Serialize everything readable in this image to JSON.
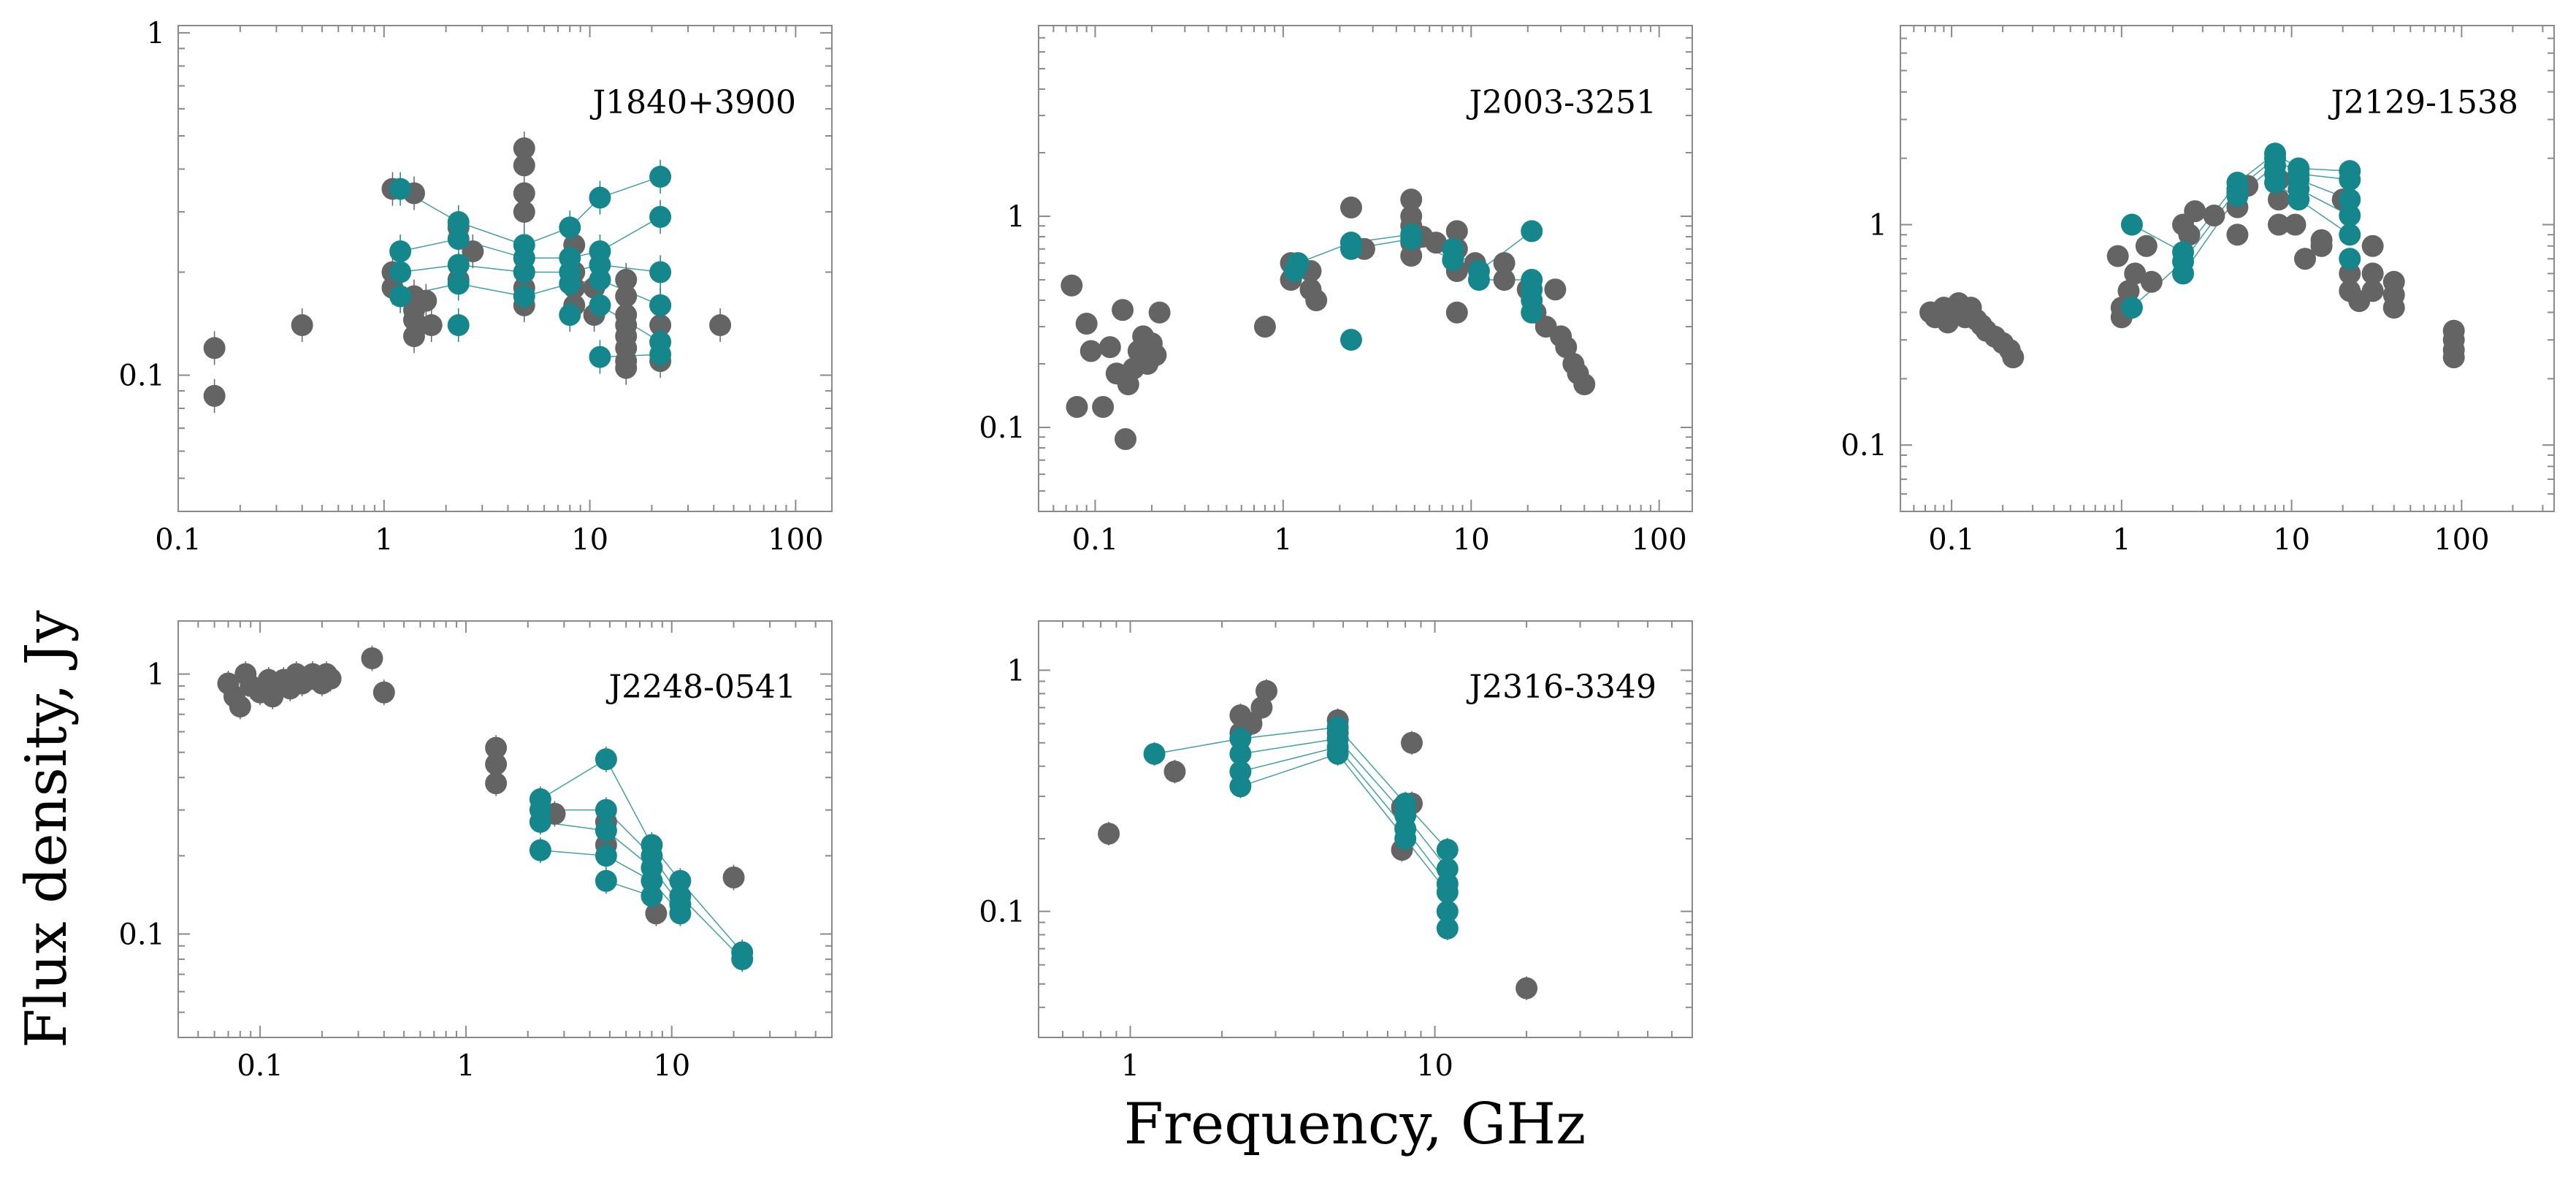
{
  "colors": {
    "gray": "#646464",
    "teal": "#15868c",
    "frame": "#8a8a8a"
  },
  "labels": {
    "x_title": "Frequency, GHz",
    "y_title": "Flux density, Jy"
  },
  "chart_data": [
    {
      "type": "scatter",
      "name": "J1840+3900",
      "xscale": "log",
      "yscale": "log",
      "xlim": [
        0.1,
        150
      ],
      "ylim": [
        0.04,
        1.05
      ],
      "xticks": [
        0.1,
        1,
        10,
        100
      ],
      "xtick_labels": [
        "0.1",
        "1",
        "10",
        "100"
      ],
      "yticks": [
        0.1,
        1
      ],
      "ytick_labels": [
        "0.1",
        "1"
      ],
      "gray": [
        [
          0.15,
          0.12
        ],
        [
          0.15,
          0.087
        ],
        [
          0.4,
          0.14
        ],
        [
          1.1,
          0.35
        ],
        [
          1.1,
          0.2
        ],
        [
          1.1,
          0.18
        ],
        [
          1.4,
          0.34
        ],
        [
          1.4,
          0.17
        ],
        [
          1.4,
          0.155
        ],
        [
          1.4,
          0.145
        ],
        [
          1.4,
          0.13
        ],
        [
          1.6,
          0.165
        ],
        [
          1.7,
          0.14
        ],
        [
          2.3,
          0.27
        ],
        [
          2.3,
          0.19
        ],
        [
          2.7,
          0.23
        ],
        [
          4.8,
          0.46
        ],
        [
          4.8,
          0.41
        ],
        [
          4.8,
          0.34
        ],
        [
          4.8,
          0.3
        ],
        [
          4.8,
          0.22
        ],
        [
          4.8,
          0.2
        ],
        [
          4.8,
          0.18
        ],
        [
          4.8,
          0.16
        ],
        [
          8.4,
          0.24
        ],
        [
          8.4,
          0.2
        ],
        [
          8.4,
          0.18
        ],
        [
          8.4,
          0.16
        ],
        [
          10.5,
          0.18
        ],
        [
          10.5,
          0.15
        ],
        [
          15,
          0.19
        ],
        [
          15,
          0.17
        ],
        [
          15,
          0.15
        ],
        [
          15,
          0.14
        ],
        [
          15,
          0.13
        ],
        [
          15,
          0.12
        ],
        [
          15,
          0.11
        ],
        [
          15,
          0.105
        ],
        [
          22,
          0.16
        ],
        [
          22,
          0.14
        ],
        [
          22,
          0.11
        ],
        [
          43,
          0.14
        ]
      ],
      "teal": [
        [
          1.2,
          0.35
        ],
        [
          1.2,
          0.23
        ],
        [
          1.2,
          0.2
        ],
        [
          1.2,
          0.17
        ],
        [
          2.3,
          0.28
        ],
        [
          2.3,
          0.25
        ],
        [
          2.3,
          0.21
        ],
        [
          2.3,
          0.185
        ],
        [
          2.3,
          0.14
        ],
        [
          4.8,
          0.24
        ],
        [
          4.8,
          0.22
        ],
        [
          4.8,
          0.2
        ],
        [
          4.8,
          0.17
        ],
        [
          8.0,
          0.27
        ],
        [
          8.0,
          0.22
        ],
        [
          8.0,
          0.2
        ],
        [
          8.0,
          0.185
        ],
        [
          8.0,
          0.15
        ],
        [
          11.2,
          0.33
        ],
        [
          11.2,
          0.23
        ],
        [
          11.2,
          0.21
        ],
        [
          11.2,
          0.19
        ],
        [
          11.2,
          0.16
        ],
        [
          11.2,
          0.113
        ],
        [
          22,
          0.38
        ],
        [
          22,
          0.29
        ],
        [
          22,
          0.2
        ],
        [
          22,
          0.16
        ],
        [
          22,
          0.125
        ],
        [
          22,
          0.115
        ]
      ]
    },
    {
      "type": "scatter",
      "name": "J2003-3251",
      "xscale": "log",
      "yscale": "log",
      "xlim": [
        0.05,
        150
      ],
      "ylim": [
        0.04,
        8
      ],
      "xticks": [
        0.1,
        1,
        10,
        100
      ],
      "xtick_labels": [
        "0.1",
        "1",
        "10",
        "100"
      ],
      "yticks": [
        0.1,
        1
      ],
      "ytick_labels": [
        "0.1",
        "1"
      ],
      "gray": [
        [
          0.075,
          0.47
        ],
        [
          0.08,
          0.125
        ],
        [
          0.09,
          0.31
        ],
        [
          0.095,
          0.23
        ],
        [
          0.11,
          0.125
        ],
        [
          0.12,
          0.24
        ],
        [
          0.13,
          0.18
        ],
        [
          0.14,
          0.36
        ],
        [
          0.145,
          0.088
        ],
        [
          0.15,
          0.16
        ],
        [
          0.16,
          0.19
        ],
        [
          0.17,
          0.23
        ],
        [
          0.18,
          0.27
        ],
        [
          0.19,
          0.2
        ],
        [
          0.2,
          0.25
        ],
        [
          0.21,
          0.22
        ],
        [
          0.22,
          0.35
        ],
        [
          0.8,
          0.3
        ],
        [
          1.1,
          0.6
        ],
        [
          1.1,
          0.5
        ],
        [
          1.4,
          0.55
        ],
        [
          1.4,
          0.45
        ],
        [
          1.5,
          0.4
        ],
        [
          2.3,
          1.1
        ],
        [
          2.3,
          0.75
        ],
        [
          2.7,
          0.7
        ],
        [
          4.8,
          1.2
        ],
        [
          4.8,
          1.0
        ],
        [
          4.8,
          0.9
        ],
        [
          4.8,
          0.75
        ],
        [
          4.8,
          0.65
        ],
        [
          5.5,
          0.8
        ],
        [
          6.5,
          0.75
        ],
        [
          8.4,
          0.85
        ],
        [
          8.4,
          0.7
        ],
        [
          8.4,
          0.55
        ],
        [
          8.4,
          0.35
        ],
        [
          10.5,
          0.6
        ],
        [
          15,
          0.6
        ],
        [
          15,
          0.5
        ],
        [
          20,
          0.45
        ],
        [
          22,
          0.35
        ],
        [
          25,
          0.3
        ],
        [
          28,
          0.45
        ],
        [
          30,
          0.27
        ],
        [
          32,
          0.24
        ],
        [
          35,
          0.2
        ],
        [
          37,
          0.18
        ],
        [
          40,
          0.16
        ]
      ],
      "teal": [
        [
          1.15,
          0.55
        ],
        [
          1.2,
          0.6
        ],
        [
          2.3,
          0.75
        ],
        [
          2.3,
          0.7
        ],
        [
          2.3,
          0.26
        ],
        [
          4.8,
          0.82
        ],
        [
          4.8,
          0.78
        ],
        [
          8.0,
          0.7
        ],
        [
          8.0,
          0.62
        ],
        [
          11,
          0.55
        ],
        [
          11,
          0.5
        ],
        [
          21,
          0.85
        ],
        [
          21,
          0.5
        ],
        [
          21,
          0.45
        ],
        [
          21,
          0.4
        ],
        [
          21,
          0.35
        ]
      ]
    },
    {
      "type": "scatter",
      "name": "J2129-1538",
      "xscale": "log",
      "yscale": "log",
      "xlim": [
        0.05,
        350
      ],
      "ylim": [
        0.05,
        8
      ],
      "xticks": [
        0.1,
        1,
        10,
        100
      ],
      "xtick_labels": [
        "0.1",
        "1",
        "10",
        "100"
      ],
      "yticks": [
        0.1,
        1
      ],
      "ytick_labels": [
        "0.1",
        "1"
      ],
      "gray": [
        [
          0.075,
          0.4
        ],
        [
          0.08,
          0.38
        ],
        [
          0.09,
          0.42
        ],
        [
          0.095,
          0.36
        ],
        [
          0.1,
          0.4
        ],
        [
          0.11,
          0.44
        ],
        [
          0.12,
          0.38
        ],
        [
          0.13,
          0.42
        ],
        [
          0.14,
          0.37
        ],
        [
          0.15,
          0.35
        ],
        [
          0.16,
          0.33
        ],
        [
          0.18,
          0.31
        ],
        [
          0.2,
          0.29
        ],
        [
          0.22,
          0.27
        ],
        [
          0.23,
          0.25
        ],
        [
          0.95,
          0.72
        ],
        [
          1.0,
          0.42
        ],
        [
          1.0,
          0.38
        ],
        [
          1.1,
          0.5
        ],
        [
          1.2,
          0.6
        ],
        [
          1.4,
          0.8
        ],
        [
          1.5,
          0.55
        ],
        [
          2.3,
          1.0
        ],
        [
          2.5,
          0.9
        ],
        [
          2.7,
          1.15
        ],
        [
          3.5,
          1.1
        ],
        [
          4.8,
          1.4
        ],
        [
          4.8,
          1.2
        ],
        [
          4.8,
          0.9
        ],
        [
          5.5,
          1.5
        ],
        [
          8.4,
          1.6
        ],
        [
          8.4,
          1.3
        ],
        [
          8.4,
          1.0
        ],
        [
          10.5,
          1.0
        ],
        [
          12,
          0.7
        ],
        [
          15,
          0.85
        ],
        [
          15,
          0.8
        ],
        [
          20,
          1.3
        ],
        [
          22,
          0.6
        ],
        [
          22,
          0.5
        ],
        [
          25,
          0.45
        ],
        [
          30,
          0.8
        ],
        [
          30,
          0.6
        ],
        [
          30,
          0.5
        ],
        [
          40,
          0.55
        ],
        [
          40,
          0.48
        ],
        [
          40,
          0.42
        ],
        [
          90,
          0.33
        ],
        [
          90,
          0.3
        ],
        [
          90,
          0.27
        ],
        [
          90,
          0.25
        ]
      ],
      "teal": [
        [
          1.15,
          1.0
        ],
        [
          1.15,
          0.42
        ],
        [
          2.3,
          0.75
        ],
        [
          2.3,
          0.68
        ],
        [
          2.3,
          0.6
        ],
        [
          4.8,
          1.55
        ],
        [
          4.8,
          1.45
        ],
        [
          4.8,
          1.35
        ],
        [
          8.0,
          2.1
        ],
        [
          8.0,
          2.0
        ],
        [
          8.0,
          1.85
        ],
        [
          8.0,
          1.7
        ],
        [
          8.0,
          1.55
        ],
        [
          11,
          1.8
        ],
        [
          11,
          1.7
        ],
        [
          11,
          1.6
        ],
        [
          11,
          1.45
        ],
        [
          11,
          1.3
        ],
        [
          22,
          1.75
        ],
        [
          22,
          1.6
        ],
        [
          22,
          1.3
        ],
        [
          22,
          1.1
        ],
        [
          22,
          0.9
        ],
        [
          22,
          0.7
        ]
      ]
    },
    {
      "type": "scatter",
      "name": "J2248-0541",
      "xscale": "log",
      "yscale": "log",
      "xlim": [
        0.04,
        60
      ],
      "ylim": [
        0.04,
        1.6
      ],
      "xticks": [
        0.1,
        1,
        10
      ],
      "xtick_labels": [
        "0.1",
        "1",
        "10"
      ],
      "yticks": [
        0.1,
        1
      ],
      "ytick_labels": [
        "0.1",
        "1"
      ],
      "gray": [
        [
          0.07,
          0.92
        ],
        [
          0.075,
          0.82
        ],
        [
          0.08,
          0.75
        ],
        [
          0.085,
          1.0
        ],
        [
          0.09,
          0.9
        ],
        [
          0.1,
          0.85
        ],
        [
          0.11,
          0.95
        ],
        [
          0.115,
          0.82
        ],
        [
          0.12,
          0.9
        ],
        [
          0.13,
          0.95
        ],
        [
          0.14,
          0.88
        ],
        [
          0.15,
          1.0
        ],
        [
          0.16,
          0.92
        ],
        [
          0.17,
          0.95
        ],
        [
          0.18,
          1.0
        ],
        [
          0.19,
          0.95
        ],
        [
          0.2,
          0.92
        ],
        [
          0.21,
          1.0
        ],
        [
          0.22,
          0.96
        ],
        [
          0.35,
          1.15
        ],
        [
          0.4,
          0.85
        ],
        [
          1.4,
          0.52
        ],
        [
          1.4,
          0.45
        ],
        [
          1.4,
          0.38
        ],
        [
          2.7,
          0.29
        ],
        [
          4.8,
          0.27
        ],
        [
          4.8,
          0.22
        ],
        [
          8.4,
          0.12
        ],
        [
          20,
          0.165
        ]
      ],
      "teal": [
        [
          2.3,
          0.33
        ],
        [
          2.3,
          0.3
        ],
        [
          2.3,
          0.27
        ],
        [
          2.3,
          0.21
        ],
        [
          4.8,
          0.47
        ],
        [
          4.8,
          0.3
        ],
        [
          4.8,
          0.25
        ],
        [
          4.8,
          0.2
        ],
        [
          4.8,
          0.16
        ],
        [
          8.0,
          0.22
        ],
        [
          8.0,
          0.2
        ],
        [
          8.0,
          0.18
        ],
        [
          8.0,
          0.16
        ],
        [
          8.0,
          0.14
        ],
        [
          11,
          0.16
        ],
        [
          11,
          0.14
        ],
        [
          11,
          0.13
        ],
        [
          11,
          0.12
        ],
        [
          22,
          0.085
        ],
        [
          22,
          0.08
        ]
      ]
    },
    {
      "type": "scatter",
      "name": "J2316-3349",
      "xscale": "log",
      "yscale": "log",
      "xlim": [
        0.5,
        70
      ],
      "ylim": [
        0.03,
        1.6
      ],
      "xticks": [
        1,
        10
      ],
      "xtick_labels": [
        "1",
        "10"
      ],
      "yticks": [
        0.1,
        1
      ],
      "ytick_labels": [
        "0.1",
        "1"
      ],
      "gray": [
        [
          0.85,
          0.21
        ],
        [
          1.4,
          0.38
        ],
        [
          2.3,
          0.65
        ],
        [
          2.3,
          0.55
        ],
        [
          2.5,
          0.6
        ],
        [
          2.7,
          0.7
        ],
        [
          2.8,
          0.82
        ],
        [
          4.8,
          0.62
        ],
        [
          4.8,
          0.55
        ],
        [
          8.4,
          0.5
        ],
        [
          8.4,
          0.28
        ],
        [
          7.8,
          0.27
        ],
        [
          7.8,
          0.18
        ],
        [
          20,
          0.048
        ]
      ],
      "teal": [
        [
          1.2,
          0.45
        ],
        [
          2.3,
          0.52
        ],
        [
          2.3,
          0.45
        ],
        [
          2.3,
          0.38
        ],
        [
          2.3,
          0.33
        ],
        [
          4.8,
          0.58
        ],
        [
          4.8,
          0.52
        ],
        [
          4.8,
          0.48
        ],
        [
          4.8,
          0.45
        ],
        [
          8.0,
          0.28
        ],
        [
          8.0,
          0.25
        ],
        [
          8.0,
          0.22
        ],
        [
          8.0,
          0.2
        ],
        [
          11,
          0.18
        ],
        [
          11,
          0.15
        ],
        [
          11,
          0.13
        ],
        [
          11,
          0.12
        ],
        [
          11,
          0.1
        ],
        [
          11,
          0.085
        ]
      ]
    }
  ]
}
